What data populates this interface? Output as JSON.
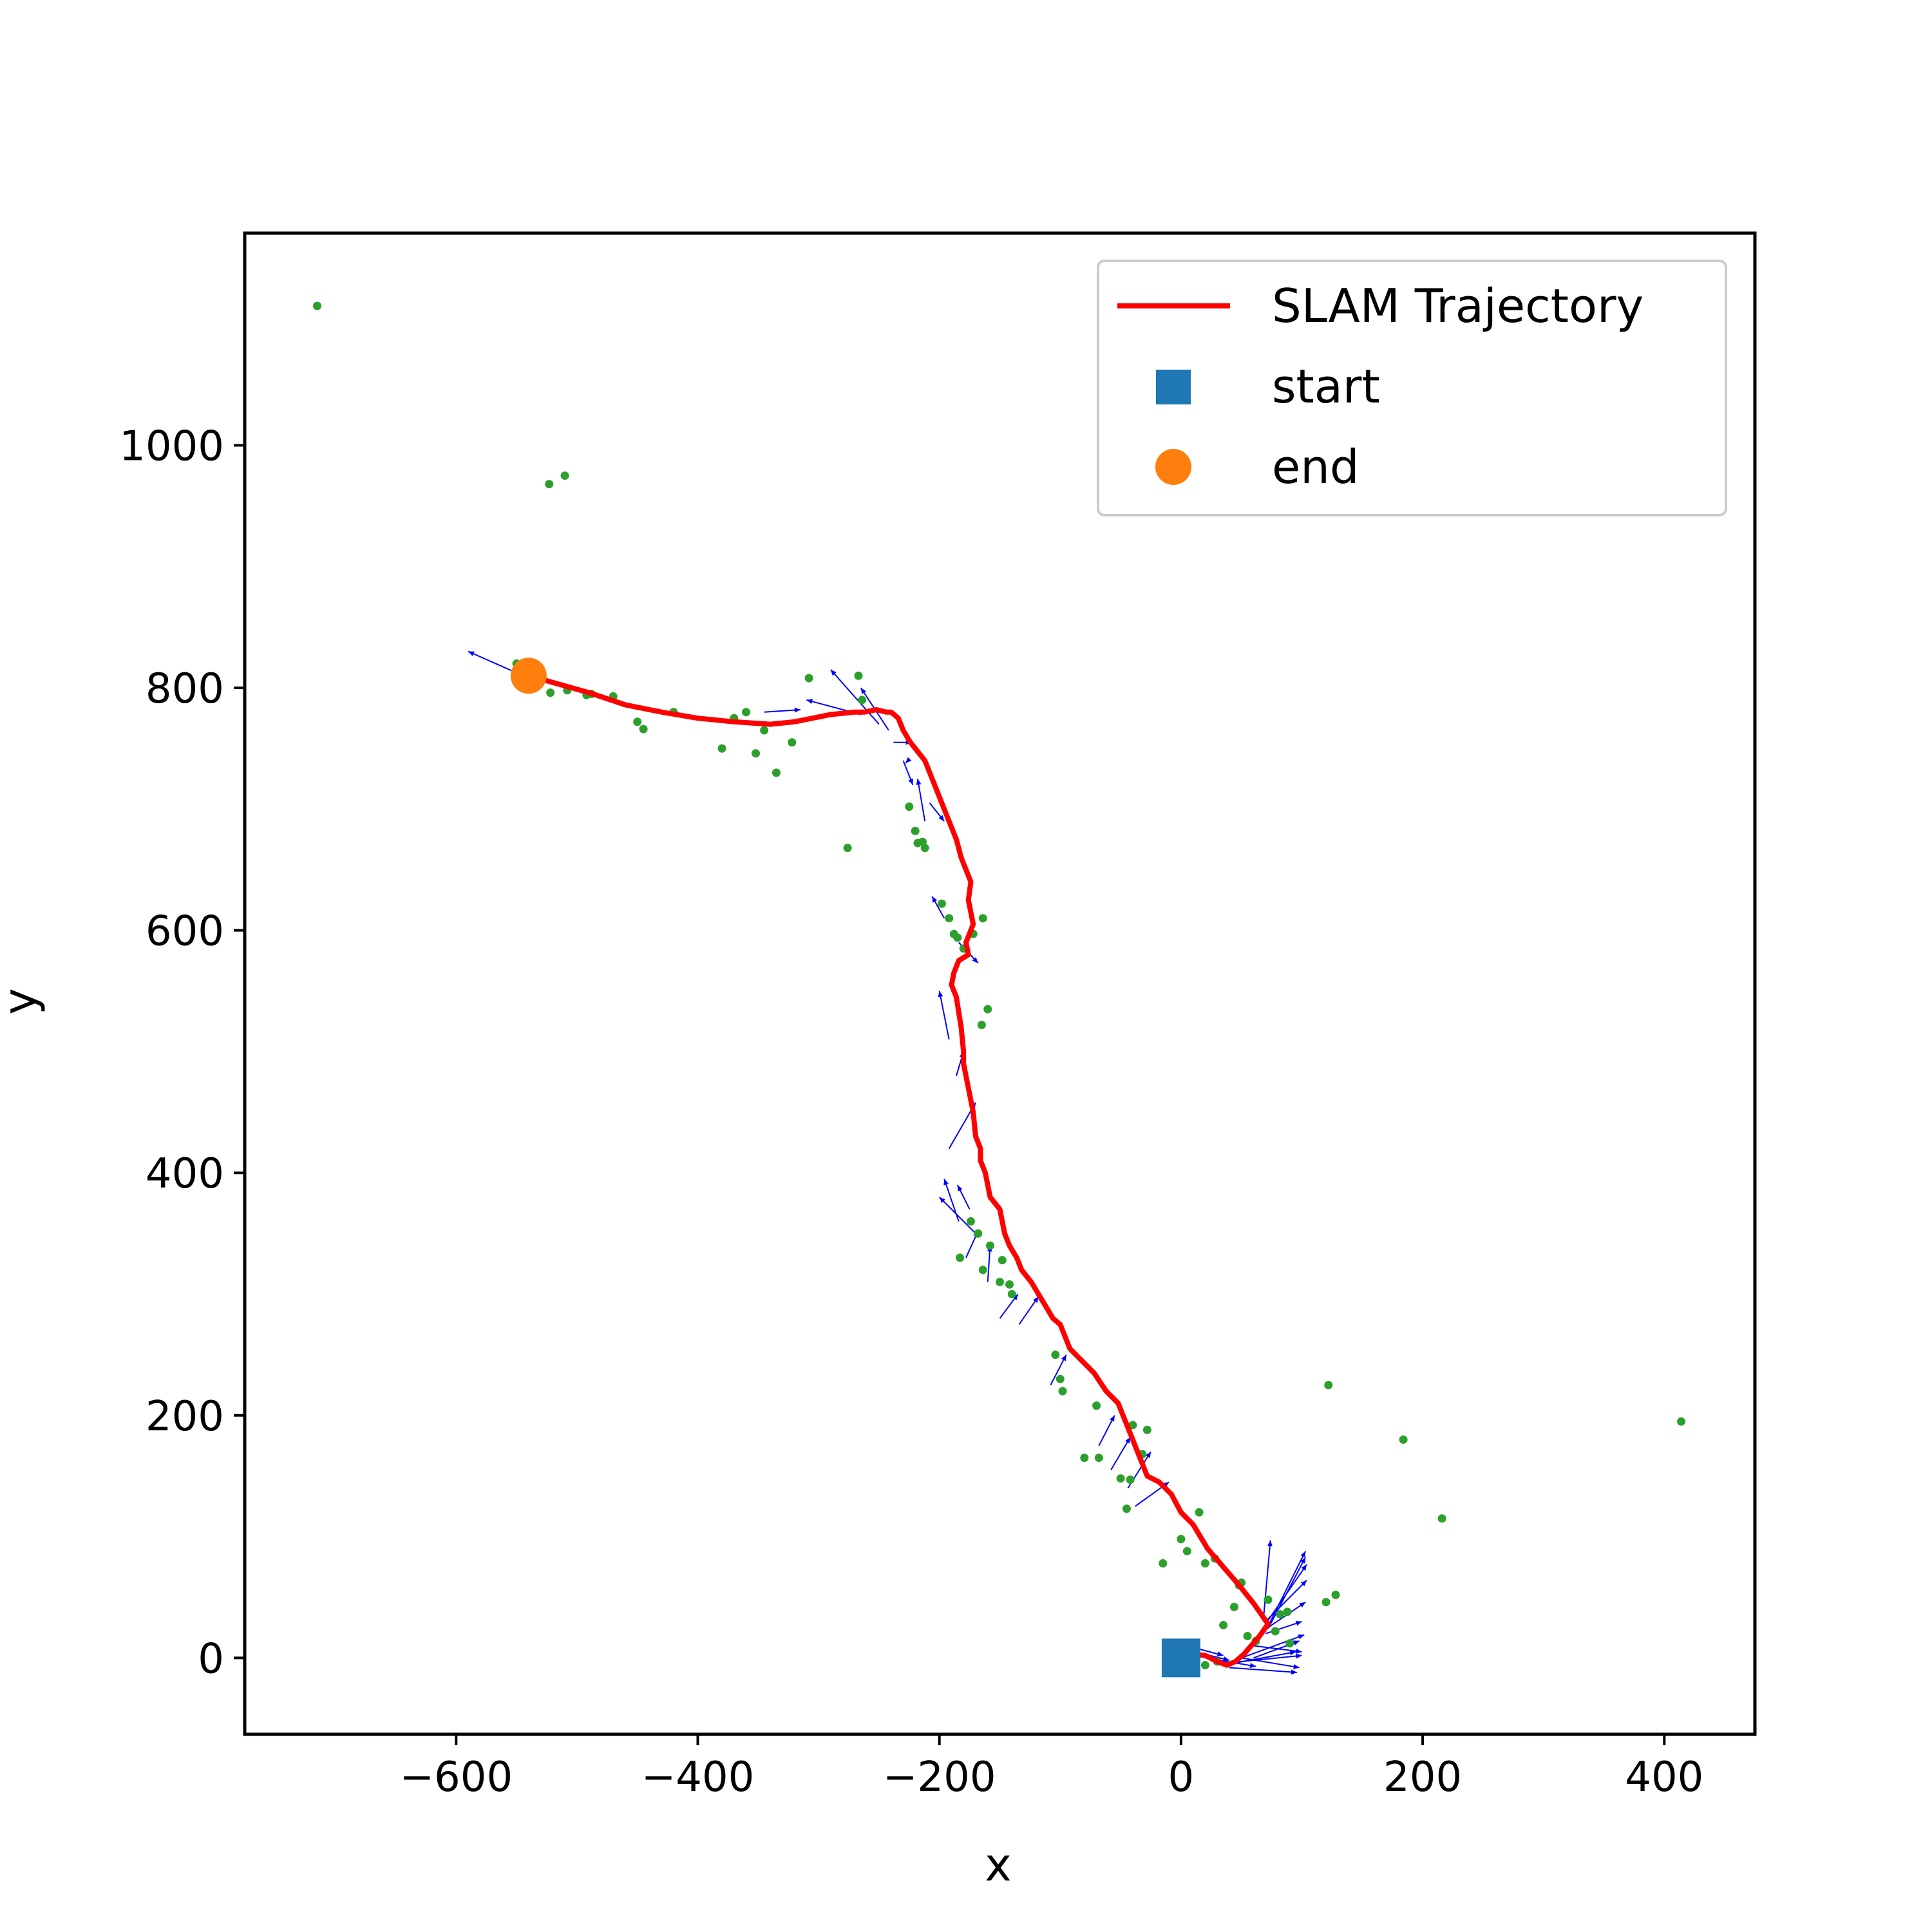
{
  "chart_data": {
    "type": "line",
    "xlabel": "x",
    "ylabel": "y",
    "xlim": [
      -775,
      475
    ],
    "ylim": [
      -63,
      1175
    ],
    "xticks": [
      -600,
      -400,
      -200,
      0,
      200,
      400
    ],
    "yticks": [
      0,
      200,
      400,
      600,
      800,
      1000
    ],
    "legend_position": "top-right",
    "colors": {
      "trajectory": "#ff0000",
      "start": "#1f77b4",
      "end": "#ff7f0e",
      "landmarks": "#2ca02c",
      "vectors": "#0000ff"
    },
    "series": [
      {
        "name": "SLAM Trajectory",
        "kind": "line",
        "x": [
          0,
          10,
          20,
          30,
          38,
          45,
          52,
          58,
          65,
          72,
          60,
          48,
          35,
          22,
          10,
          0,
          -8,
          -18,
          -28,
          -34,
          -40,
          -46,
          -52,
          -62,
          -72,
          -82,
          -92,
          -96,
          -100,
          -106,
          -112,
          -118,
          -124,
          -132,
          -136,
          -142,
          -146,
          -150,
          -158,
          -162,
          -166,
          -166,
          -170,
          -172,
          -176,
          -180,
          -180,
          -182,
          -186,
          -190,
          -188,
          -184,
          -176,
          -178,
          -172,
          -176,
          -174,
          -182,
          -186,
          -192,
          -196,
          -204,
          -212,
          -224,
          -230,
          -232,
          -234,
          -240,
          -244,
          -252,
          -262,
          -270,
          -290,
          -320,
          -340,
          -370,
          -400,
          -430,
          -460,
          -490,
          -515,
          -540
        ],
        "y": [
          0,
          3,
          2,
          -3,
          -6,
          -3,
          3,
          10,
          18,
          28,
          45,
          60,
          75,
          90,
          110,
          120,
          135,
          145,
          150,
          165,
          180,
          195,
          210,
          220,
          235,
          245,
          255,
          265,
          275,
          280,
          290,
          300,
          310,
          320,
          330,
          340,
          350,
          370,
          380,
          400,
          410,
          420,
          430,
          450,
          470,
          490,
          500,
          520,
          545,
          555,
          565,
          575,
          580,
          590,
          605,
          625,
          640,
          660,
          675,
          690,
          700,
          720,
          740,
          755,
          765,
          770,
          775,
          780,
          780,
          782,
          780,
          780,
          778,
          772,
          770,
          772,
          775,
          780,
          786,
          796,
          803,
          810
        ]
      },
      {
        "name": "start",
        "kind": "marker",
        "marker": "square",
        "x": [
          0
        ],
        "y": [
          0
        ]
      },
      {
        "name": "end",
        "kind": "marker",
        "marker": "circle",
        "x": [
          -540
        ],
        "y": [
          810
        ]
      },
      {
        "kind": "scatter",
        "x": [
          -715,
          -523,
          -510,
          -550,
          -545,
          -522,
          -508,
          -492,
          -488,
          -470,
          -450,
          -445,
          -420,
          -380,
          -370,
          -360,
          -352,
          -345,
          -335,
          -322,
          -308,
          -276,
          -267,
          -264,
          -225,
          -220,
          -218,
          -214,
          -212,
          -198,
          -192,
          -188,
          -185,
          -180,
          -172,
          -165,
          -164,
          -160,
          -183,
          -174,
          -168,
          -164,
          -158,
          -150,
          -148,
          -142,
          -140,
          -104,
          -100,
          -98,
          -80,
          -70,
          -68,
          -50,
          -45,
          -42,
          -40,
          -32,
          -28,
          -15,
          0,
          5,
          15,
          20,
          28,
          35,
          44,
          48,
          50,
          55,
          62,
          72,
          78,
          82,
          88,
          90,
          120,
          128,
          184,
          122,
          216,
          414,
          20,
          30
        ],
        "y": [
          1115,
          968,
          975,
          820,
          817,
          796,
          798,
          794,
          795,
          793,
          772,
          766,
          780,
          750,
          775,
          780,
          746,
          765,
          730,
          755,
          808,
          668,
          810,
          790,
          702,
          682,
          672,
          673,
          668,
          622,
          610,
          597,
          594,
          585,
          597,
          522,
          610,
          535,
          330,
          360,
          350,
          320,
          340,
          310,
          328,
          308,
          300,
          250,
          230,
          220,
          165,
          208,
          165,
          148,
          123,
          147,
          192,
          168,
          188,
          78,
          98,
          88,
          120,
          78,
          82,
          27,
          42,
          60,
          62,
          18,
          14,
          48,
          22,
          36,
          38,
          12,
          46,
          52,
          180,
          225,
          115,
          195,
          -6,
          -3
        ]
      },
      {
        "kind": "vectors",
        "x0": [
          -540,
          -345,
          -265,
          -250,
          -242,
          -238,
          -230,
          -226,
          -208,
          -212,
          -196,
          -184,
          -192,
          -186,
          -192,
          -175,
          -184,
          -170,
          -178,
          -160,
          -150,
          -134,
          -108,
          -68,
          -58,
          -44,
          -38,
          5,
          12,
          50,
          60,
          70,
          72,
          70,
          68,
          70,
          72,
          70,
          60,
          50,
          40,
          30,
          20,
          40
        ],
        "y0": [
          808,
          780,
          778,
          770,
          765,
          755,
          740,
          740,
          705,
          690,
          610,
          590,
          510,
          480,
          420,
          370,
          360,
          350,
          330,
          310,
          280,
          275,
          225,
          175,
          155,
          140,
          125,
          10,
          5,
          0,
          10,
          20,
          25,
          30,
          30,
          28,
          24,
          22,
          0,
          0,
          -5,
          -5,
          0,
          -8
        ],
        "x1": [
          -590,
          -315,
          -310,
          -290,
          -265,
          -223,
          -222,
          -228,
          -196,
          -218,
          -206,
          -168,
          -200,
          -180,
          -170,
          -185,
          -196,
          -200,
          -168,
          -158,
          -135,
          -118,
          -95,
          -55,
          -42,
          -25,
          -10,
          35,
          40,
          98,
          100,
          100,
          103,
          104,
          74,
          104,
          103,
          103,
          98,
          102,
          95,
          100,
          62,
          96
        ],
        "y1": [
          830,
          782,
          790,
          815,
          800,
          755,
          720,
          738,
          690,
          725,
          628,
          573,
          550,
          500,
          458,
          390,
          395,
          380,
          352,
          340,
          300,
          298,
          250,
          200,
          182,
          170,
          145,
          2,
          -2,
          -8,
          5,
          30,
          46,
          64,
          97,
          77,
          83,
          88,
          14,
          19,
          5,
          2,
          -7,
          -12
        ]
      }
    ]
  }
}
